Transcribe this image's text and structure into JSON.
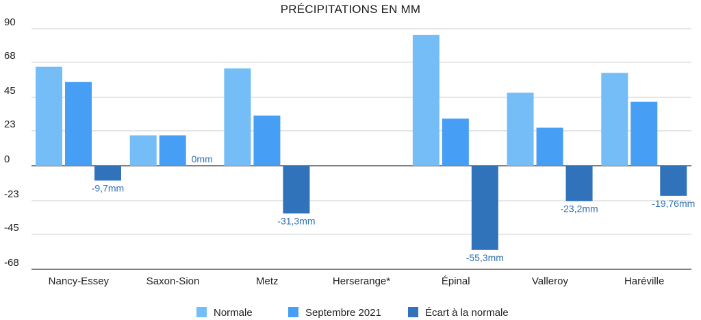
{
  "chart_data": {
    "type": "bar",
    "title": "PRÉCIPITATIONS EN MM",
    "categories": [
      "Nancy-Essey",
      "Saxon-Sion",
      "Metz",
      "Herserange*",
      "Épinal",
      "Valleroy",
      "Haréville"
    ],
    "series": [
      {
        "name": "Normale",
        "color": "#74bdf7",
        "values": [
          65,
          20,
          64,
          null,
          86,
          48,
          61
        ]
      },
      {
        "name": "Septembre 2021",
        "color": "#479ef5",
        "values": [
          55,
          20,
          33,
          null,
          31,
          25,
          42
        ]
      },
      {
        "name": "Écart à la normale",
        "color": "#3073ba",
        "values": [
          -9.7,
          0,
          -31.3,
          null,
          -55.3,
          -23.2,
          -19.76
        ]
      }
    ],
    "data_labels": [
      "-9,7mm",
      "0mm",
      "-31,3mm",
      "",
      "-55,3mm",
      "-23,2mm",
      "-19,76mm"
    ],
    "yticks": [
      90,
      68,
      45,
      23,
      0,
      -23,
      -45,
      -68
    ],
    "ylim": [
      -68,
      90
    ],
    "grid": true,
    "legend_position": "bottom"
  }
}
